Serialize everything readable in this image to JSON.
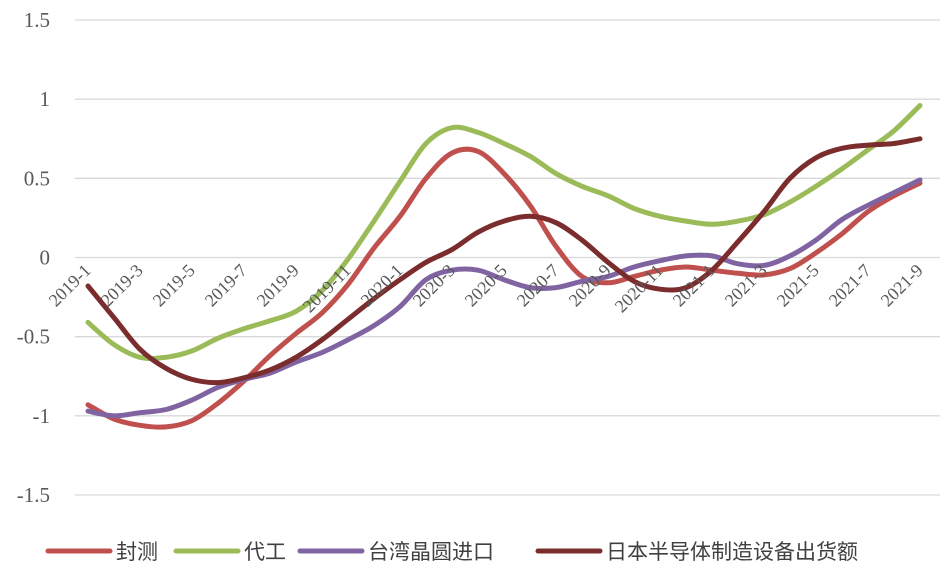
{
  "chart_data": {
    "type": "line",
    "title": "",
    "xlabel": "",
    "ylabel": "",
    "ylim": [
      -1.5,
      1.5
    ],
    "yticks": [
      1.5,
      1,
      0.5,
      0,
      -0.5,
      -1,
      -1.5
    ],
    "ytick_labels": [
      "1.5",
      "1",
      "0.5",
      "0",
      "-0.5",
      "-1",
      "-1.5"
    ],
    "grid": "horizontal",
    "legend": "bottom",
    "x": [
      "2019-1",
      "2019-2",
      "2019-3",
      "2019-4",
      "2019-5",
      "2019-6",
      "2019-7",
      "2019-8",
      "2019-9",
      "2019-10",
      "2019-11",
      "2019-12",
      "2020-1",
      "2020-2",
      "2020-3",
      "2020-4",
      "2020-5",
      "2020-6",
      "2020-7",
      "2020-8",
      "2020-9",
      "2020-10",
      "2020-11",
      "2020-12",
      "2021-1",
      "2021-2",
      "2021-3",
      "2021-4",
      "2021-5",
      "2021-6",
      "2021-7",
      "2021-8",
      "2021-9"
    ],
    "xtick_labels": [
      "2019-1",
      "2019-3",
      "2019-5",
      "2019-7",
      "2019-9",
      "2019-11",
      "2020-1",
      "2020-3",
      "2020-5",
      "2020-7",
      "2020-9",
      "2020-11",
      "2021-1",
      "2021-3",
      "2021-5",
      "2021-7",
      "2021-9"
    ],
    "series": [
      {
        "name": "封测",
        "color": "#c0504d",
        "values": [
          -0.93,
          -1.02,
          -1.06,
          -1.07,
          -1.03,
          -0.92,
          -0.78,
          -0.62,
          -0.48,
          -0.35,
          -0.17,
          0.06,
          0.26,
          0.5,
          0.66,
          0.67,
          0.53,
          0.33,
          0.07,
          -0.12,
          -0.16,
          -0.12,
          -0.08,
          -0.06,
          -0.08,
          -0.1,
          -0.11,
          -0.07,
          0.03,
          0.15,
          0.29,
          0.39,
          0.47
        ]
      },
      {
        "name": "代工",
        "color": "#9bbb59",
        "values": [
          -0.41,
          -0.55,
          -0.63,
          -0.63,
          -0.59,
          -0.51,
          -0.45,
          -0.4,
          -0.34,
          -0.21,
          -0.01,
          0.23,
          0.48,
          0.72,
          0.82,
          0.79,
          0.72,
          0.64,
          0.53,
          0.45,
          0.39,
          0.31,
          0.26,
          0.23,
          0.21,
          0.23,
          0.27,
          0.35,
          0.45,
          0.56,
          0.68,
          0.8,
          0.96
        ]
      },
      {
        "name": "台湾晶圆进口",
        "color": "#8064a2",
        "values": [
          -0.97,
          -1.0,
          -0.98,
          -0.96,
          -0.9,
          -0.82,
          -0.77,
          -0.73,
          -0.66,
          -0.6,
          -0.52,
          -0.43,
          -0.31,
          -0.14,
          -0.08,
          -0.08,
          -0.14,
          -0.19,
          -0.19,
          -0.15,
          -0.12,
          -0.06,
          -0.02,
          0.01,
          0.01,
          -0.04,
          -0.05,
          0.01,
          0.11,
          0.24,
          0.33,
          0.41,
          0.49
        ]
      },
      {
        "name": "日本半导体制造设备出货额",
        "color": "#7b2c2c",
        "values": [
          -0.18,
          -0.38,
          -0.58,
          -0.7,
          -0.77,
          -0.79,
          -0.76,
          -0.71,
          -0.63,
          -0.52,
          -0.39,
          -0.26,
          -0.14,
          -0.03,
          0.05,
          0.16,
          0.23,
          0.26,
          0.22,
          0.11,
          -0.03,
          -0.15,
          -0.2,
          -0.19,
          -0.08,
          0.1,
          0.29,
          0.5,
          0.63,
          0.69,
          0.71,
          0.72,
          0.75
        ]
      }
    ]
  }
}
